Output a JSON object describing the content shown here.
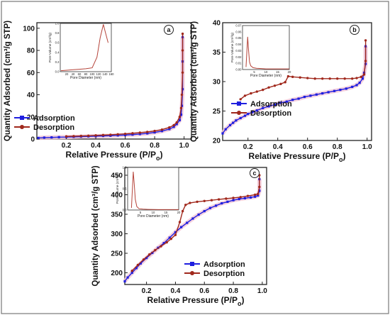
{
  "figure": {
    "border_color": "#777777"
  },
  "colors": {
    "adsorption": "#1f1fdf",
    "desorption": "#a0281c",
    "inset_line": "#b5443a"
  },
  "chart_data": [
    {
      "panel": "a",
      "type": "line",
      "xlabel": "Relative Pressure (P/P₀)",
      "xlabel_main": "Relative Pressure (P/P",
      "xlabel_sub": "o",
      "xlabel_tail": ")",
      "ylabel": "Quantity Adsorbed (cm³/g STP)",
      "xlim": [
        0,
        1.05
      ],
      "ylim": [
        0,
        105
      ],
      "xticks": [
        0.2,
        0.4,
        0.6,
        0.8,
        1.0
      ],
      "xtick_labels": [
        "0.2",
        "0.4",
        "0.6",
        "0.8",
        "1.0"
      ],
      "yticks": [
        0,
        20,
        40,
        60,
        80,
        100
      ],
      "ytick_labels": [
        "0",
        "20",
        "40",
        "60",
        "80",
        "100"
      ],
      "legend_position": "lower-left",
      "series": [
        {
          "name": "Adsorption",
          "x": [
            0.01,
            0.05,
            0.1,
            0.15,
            0.2,
            0.25,
            0.3,
            0.35,
            0.4,
            0.45,
            0.5,
            0.55,
            0.6,
            0.65,
            0.7,
            0.75,
            0.8,
            0.85,
            0.9,
            0.93,
            0.95,
            0.97,
            0.98,
            0.985,
            0.99,
            0.99,
            0.99
          ],
          "y": [
            1.0,
            1.3,
            1.5,
            1.7,
            1.8,
            2.0,
            2.2,
            2.4,
            2.6,
            2.8,
            3.0,
            3.3,
            3.6,
            4.0,
            4.5,
            5.1,
            6.0,
            7.2,
            9.0,
            11.0,
            13.5,
            17.0,
            22.0,
            30.0,
            45.0,
            70.0,
            92.0
          ]
        },
        {
          "name": "Desorption",
          "x": [
            0.99,
            0.99,
            0.99,
            0.985,
            0.98,
            0.97,
            0.95,
            0.93,
            0.9,
            0.85,
            0.8,
            0.75,
            0.7,
            0.65,
            0.6,
            0.55,
            0.5,
            0.45,
            0.4,
            0.35,
            0.3,
            0.25,
            0.2
          ],
          "y": [
            95.0,
            80.0,
            60.0,
            40.0,
            28.0,
            20.0,
            15.0,
            12.5,
            10.5,
            8.5,
            7.3,
            6.4,
            5.8,
            5.2,
            4.7,
            4.3,
            3.9,
            3.6,
            3.3,
            3.0,
            2.8,
            2.6,
            2.4
          ]
        }
      ],
      "inset": {
        "type": "line",
        "xlabel": "Pore Diameter (nm)",
        "ylabel": "Pore Volume (cm³/g)",
        "xlim": [
          0,
          160
        ],
        "ylim": [
          0,
          1.0
        ],
        "xticks": [
          20,
          40,
          60,
          80,
          100,
          120,
          140,
          160
        ],
        "yticks": [
          0.0,
          0.2,
          0.4,
          0.6,
          0.8,
          1.0
        ],
        "ytick_labels": [
          "0.0",
          "0.2",
          "0.4",
          "0.6",
          "0.8",
          "1.0"
        ],
        "series": [
          {
            "x": [
              2,
              20,
              40,
              60,
              80,
              100,
              115,
              125,
              135,
              140,
              150
            ],
            "y": [
              0.02,
              0.03,
              0.04,
              0.05,
              0.06,
              0.08,
              0.3,
              0.7,
              0.98,
              0.85,
              0.6
            ]
          }
        ]
      }
    },
    {
      "panel": "b",
      "type": "line",
      "xlabel": "Relative Pressure (P/P₀)",
      "xlabel_main": "Relative Pressure (P/P",
      "xlabel_sub": "o",
      "xlabel_tail": ")",
      "ylabel": "Quantity Adsorbed (cm³/g STP)",
      "xlim": [
        0.03,
        1.03
      ],
      "ylim": [
        20,
        40
      ],
      "xticks": [
        0.2,
        0.4,
        0.6,
        0.8,
        1.0
      ],
      "xtick_labels": [
        "0.2",
        "0.4",
        "0.6",
        "0.8",
        "1.0"
      ],
      "yticks": [
        20,
        25,
        30,
        35,
        40
      ],
      "ytick_labels": [
        "20",
        "25",
        "30",
        "35",
        "40"
      ],
      "legend_position": "lower-left",
      "series": [
        {
          "name": "Adsorption",
          "x": [
            0.03,
            0.05,
            0.08,
            0.1,
            0.12,
            0.15,
            0.18,
            0.2,
            0.23,
            0.26,
            0.3,
            0.34,
            0.38,
            0.42,
            0.46,
            0.5,
            0.54,
            0.58,
            0.62,
            0.66,
            0.7,
            0.74,
            0.78,
            0.82,
            0.86,
            0.9,
            0.93,
            0.95,
            0.97,
            0.98,
            0.99,
            0.99
          ],
          "y": [
            21.2,
            21.9,
            22.6,
            23.0,
            23.4,
            23.8,
            24.2,
            24.5,
            24.8,
            25.1,
            25.5,
            25.8,
            26.1,
            26.4,
            26.6,
            26.9,
            27.1,
            27.4,
            27.6,
            27.8,
            28.0,
            28.2,
            28.4,
            28.6,
            28.8,
            29.1,
            29.4,
            29.8,
            30.5,
            31.5,
            33.0,
            36.0
          ]
        },
        {
          "name": "Desorption",
          "x": [
            0.99,
            0.99,
            0.98,
            0.96,
            0.93,
            0.9,
            0.85,
            0.8,
            0.75,
            0.7,
            0.65,
            0.6,
            0.55,
            0.5,
            0.47,
            0.45,
            0.42,
            0.38,
            0.34,
            0.3,
            0.26,
            0.22,
            0.18,
            0.15
          ],
          "y": [
            37.0,
            33.5,
            31.2,
            30.8,
            30.6,
            30.5,
            30.5,
            30.5,
            30.5,
            30.5,
            30.5,
            30.6,
            30.7,
            30.8,
            30.9,
            29.9,
            29.6,
            29.3,
            29.0,
            28.6,
            28.3,
            28.0,
            27.6,
            27.0
          ]
        }
      ],
      "inset": {
        "type": "line",
        "xlabel": "Pore Diameter (nm)",
        "ylabel": "Pore Volume (cm³/g)",
        "xlim": [
          0,
          20
        ],
        "ylim": [
          0,
          0.07
        ],
        "xticks": [
          5,
          10,
          15,
          20
        ],
        "yticks": [
          0.0,
          0.01,
          0.02,
          0.03,
          0.04,
          0.05,
          0.06,
          0.07
        ],
        "ytick_labels": [
          "0.00",
          "0.01",
          "0.02",
          "0.03",
          "0.04",
          "0.05",
          "0.06",
          "0.07"
        ],
        "series": [
          {
            "x": [
              1.5,
              2.2,
              2.6,
              3.0,
              3.5,
              4.5,
              6,
              8,
              10,
              14,
              20
            ],
            "y": [
              0.004,
              0.052,
              0.03,
              0.012,
              0.006,
              0.003,
              0.002,
              0.0015,
              0.001,
              0.001,
              0.001
            ]
          }
        ]
      }
    },
    {
      "panel": "c",
      "type": "line",
      "xlabel": "Relative Pressure (P/P₀)",
      "xlabel_main": "Relative Pressure (P/P",
      "xlabel_sub": "o",
      "xlabel_tail": ")",
      "ylabel": "Quantity Adsorbed (cm³/g STP)",
      "xlim": [
        0.05,
        1.03
      ],
      "ylim": [
        170,
        470
      ],
      "xticks": [
        0.2,
        0.4,
        0.6,
        0.8,
        1.0
      ],
      "xtick_labels": [
        "0.2",
        "0.4",
        "0.6",
        "0.8",
        "1.0"
      ],
      "yticks": [
        200,
        250,
        300,
        350,
        400,
        450
      ],
      "ytick_labels": [
        "200",
        "250",
        "300",
        "350",
        "400",
        "450"
      ],
      "legend_position": "lower-right",
      "series": [
        {
          "name": "Adsorption",
          "x": [
            0.05,
            0.07,
            0.1,
            0.13,
            0.16,
            0.2,
            0.24,
            0.28,
            0.32,
            0.36,
            0.4,
            0.44,
            0.48,
            0.52,
            0.56,
            0.6,
            0.64,
            0.68,
            0.72,
            0.76,
            0.8,
            0.84,
            0.88,
            0.92,
            0.95,
            0.97,
            0.98,
            0.98
          ],
          "y": [
            178,
            188,
            200,
            212,
            224,
            238,
            251,
            264,
            276,
            290,
            304,
            317,
            328,
            339,
            349,
            358,
            366,
            372,
            378,
            382,
            386,
            389,
            391,
            393,
            395,
            398,
            410,
            440
          ]
        },
        {
          "name": "Desorption",
          "x": [
            0.98,
            0.98,
            0.97,
            0.95,
            0.9,
            0.85,
            0.8,
            0.75,
            0.7,
            0.65,
            0.6,
            0.55,
            0.5,
            0.47,
            0.45,
            0.43,
            0.4,
            0.37,
            0.34,
            0.3,
            0.26,
            0.22,
            0.18,
            0.14,
            0.1
          ],
          "y": [
            450,
            420,
            402,
            400,
            397,
            394,
            392,
            390,
            388,
            386,
            384,
            382,
            379,
            374,
            358,
            330,
            297,
            287,
            278,
            268,
            258,
            247,
            234,
            220,
            205
          ]
        }
      ],
      "inset": {
        "type": "line",
        "xlabel": "Pore Diameter (nm)",
        "ylabel": "Pore Volume (cm³/g)",
        "xlim": [
          0,
          20
        ],
        "ylim": [
          0,
          1.0
        ],
        "xticks": [
          5,
          10,
          15,
          20
        ],
        "yticks": [
          0.0,
          0.5,
          1.0
        ],
        "ytick_labels": [
          "0.0",
          "0.5",
          "1.0"
        ],
        "series": [
          {
            "x": [
              1.5,
              2.2,
              2.6,
              3.0,
              3.6,
              4.5,
              6,
              8,
              12,
              16,
              20
            ],
            "y": [
              0.05,
              0.9,
              0.6,
              0.25,
              0.08,
              0.03,
              0.02,
              0.015,
              0.01,
              0.01,
              0.01
            ]
          }
        ]
      }
    }
  ]
}
